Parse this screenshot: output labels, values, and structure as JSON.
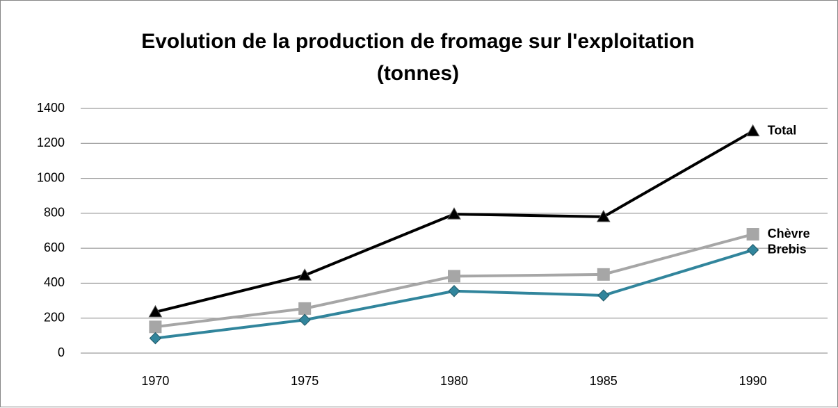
{
  "chart_data": {
    "type": "line",
    "title": "Evolution de la production de fromage sur l'exploitation (tonnes)",
    "categories": [
      "1970",
      "1975",
      "1980",
      "1985",
      "1990"
    ],
    "series": [
      {
        "name": "Total",
        "color": "#000000",
        "marker": "triangle",
        "values": [
          235,
          445,
          795,
          780,
          1270
        ]
      },
      {
        "name": "Chèvre",
        "color": "#a6a6a6",
        "marker": "square",
        "values": [
          150,
          255,
          440,
          450,
          680
        ]
      },
      {
        "name": "Brebis",
        "color": "#31859c",
        "marker": "diamond",
        "values": [
          85,
          190,
          355,
          330,
          590
        ]
      }
    ],
    "ylim": [
      0,
      1400
    ],
    "yticks": [
      0,
      200,
      400,
      600,
      800,
      1000,
      1200,
      1400
    ],
    "grid": true
  }
}
